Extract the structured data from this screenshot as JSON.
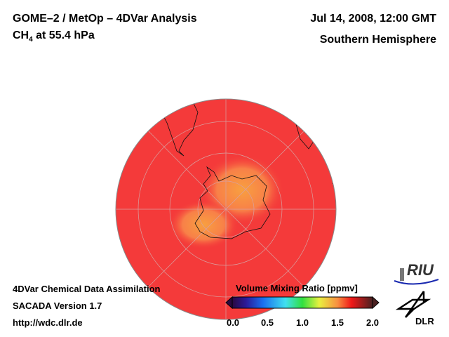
{
  "header": {
    "title_line1": "GOME–2 / MetOp – 4DVar Analysis",
    "species": "CH",
    "species_sub": "4",
    "level": " at 55.4 hPa",
    "date": "Jul 14, 2008, 12:00 GMT",
    "hemisphere": "Southern Hemisphere"
  },
  "footer": {
    "line1": "4DVar Chemical Data Assimilation",
    "line2": "SACADA Version 1.7",
    "line3": "http://wdc.dlr.de"
  },
  "colorbar": {
    "title": "Volume Mixing Ratio [ppmv]",
    "ticks": [
      "0.0",
      "0.5",
      "1.0",
      "1.5",
      "2.0"
    ],
    "range": [
      0,
      2
    ]
  },
  "logos": {
    "riu": "RIU",
    "dlr": "DLR"
  },
  "map": {
    "projection": "polar stereographic, south pole",
    "background_value_ppmv": 1.65,
    "antarctic_value_ppmv": 1.45
  }
}
